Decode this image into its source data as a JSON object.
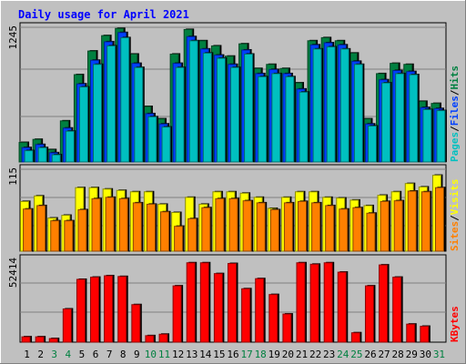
{
  "chart_data": [
    {
      "type": "bar",
      "title": "Daily usage for April 2021",
      "panel": "top",
      "ymax_label": "1245",
      "legend_labels": [
        "Pages",
        "Files",
        "Hits"
      ],
      "legend_colors": [
        "#00c0c0",
        "#0040ff",
        "#008040"
      ],
      "categories": [
        "1",
        "2",
        "3",
        "4",
        "5",
        "6",
        "7",
        "8",
        "9",
        "10",
        "11",
        "12",
        "13",
        "14",
        "15",
        "16",
        "17",
        "18",
        "19",
        "20",
        "21",
        "22",
        "23",
        "24",
        "25",
        "26",
        "27",
        "28",
        "29",
        "30",
        "31"
      ],
      "series": [
        {
          "name": "Hits",
          "color": "#008040",
          "values": [
            190,
            220,
            120,
            400,
            850,
            1080,
            1230,
            1300,
            1050,
            540,
            420,
            1050,
            1290,
            1180,
            1130,
            1030,
            1150,
            910,
            950,
            910,
            770,
            1180,
            1210,
            1180,
            1060,
            420,
            860,
            960,
            950,
            590,
            570
          ]
        },
        {
          "name": "Files",
          "color": "#0040ff",
          "values": [
            140,
            170,
            90,
            330,
            760,
            990,
            1170,
            1260,
            960,
            470,
            370,
            960,
            1220,
            1100,
            1040,
            950,
            1090,
            860,
            900,
            860,
            710,
            1140,
            1160,
            1140,
            980,
            370,
            800,
            890,
            880,
            530,
            520
          ]
        },
        {
          "name": "Pages",
          "color": "#00c0c0",
          "values": [
            110,
            140,
            70,
            300,
            730,
            950,
            1130,
            1210,
            920,
            440,
            340,
            920,
            1180,
            1060,
            1010,
            920,
            1050,
            830,
            860,
            830,
            680,
            1100,
            1120,
            1100,
            950,
            350,
            770,
            860,
            850,
            510,
            500
          ]
        }
      ],
      "ylim": [
        0,
        1320
      ]
    },
    {
      "type": "bar",
      "panel": "middle",
      "ymax_label": "115",
      "legend_labels": [
        "Sites",
        "Visits"
      ],
      "legend_colors": [
        "#ff8000",
        "#ffff00"
      ],
      "categories": [
        "1",
        "2",
        "3",
        "4",
        "5",
        "6",
        "7",
        "8",
        "9",
        "10",
        "11",
        "12",
        "13",
        "14",
        "15",
        "16",
        "17",
        "18",
        "19",
        "20",
        "21",
        "22",
        "23",
        "24",
        "25",
        "26",
        "27",
        "28",
        "29",
        "30",
        "31"
      ],
      "series": [
        {
          "name": "Visits",
          "color": "#ffff00",
          "values": [
            72,
            80,
            48,
            52,
            92,
            92,
            90,
            88,
            86,
            86,
            68,
            56,
            78,
            68,
            86,
            86,
            84,
            78,
            62,
            78,
            86,
            86,
            78,
            77,
            74,
            66,
            81,
            86,
            98,
            93,
            110
          ]
        },
        {
          "name": "Sites",
          "color": "#ff8000",
          "values": [
            61,
            66,
            44,
            44,
            60,
            76,
            78,
            76,
            70,
            68,
            57,
            36,
            47,
            63,
            76,
            76,
            73,
            70,
            60,
            70,
            72,
            70,
            66,
            61,
            63,
            55,
            72,
            73,
            87,
            86,
            92
          ]
        }
      ],
      "ylim": [
        0,
        120
      ]
    },
    {
      "type": "bar",
      "panel": "bottom",
      "ymax_label": "52414",
      "legend_labels": [
        "KBytes"
      ],
      "legend_colors": [
        "#ff0000"
      ],
      "categories": [
        "1",
        "2",
        "3",
        "4",
        "5",
        "6",
        "7",
        "8",
        "9",
        "10",
        "11",
        "12",
        "13",
        "14",
        "15",
        "16",
        "17",
        "18",
        "19",
        "20",
        "21",
        "22",
        "23",
        "24",
        "25",
        "26",
        "27",
        "28",
        "29",
        "30",
        "31"
      ],
      "series": [
        {
          "name": "KBytes",
          "color": "#ff0000",
          "values": [
            3700,
            3700,
            2500,
            23000,
            43500,
            45000,
            46000,
            45500,
            26000,
            4500,
            5500,
            39000,
            55000,
            55000,
            47500,
            54500,
            37000,
            44000,
            33000,
            19500,
            55000,
            54000,
            55000,
            48500,
            6500,
            39000,
            53500,
            45000,
            12500,
            11000,
            0
          ]
        }
      ],
      "ylim": [
        0,
        58000
      ]
    }
  ],
  "xaxis": {
    "labels": [
      "1",
      "2",
      "3",
      "4",
      "5",
      "6",
      "7",
      "8",
      "9",
      "10",
      "11",
      "12",
      "13",
      "14",
      "15",
      "16",
      "17",
      "18",
      "19",
      "20",
      "21",
      "22",
      "23",
      "24",
      "25",
      "26",
      "27",
      "28",
      "29",
      "30",
      "31"
    ],
    "weekend_days": [
      "3",
      "4",
      "10",
      "11",
      "17",
      "18",
      "24",
      "25",
      "31"
    ],
    "weekend_color": "#008040",
    "weekday_color": "#000000"
  },
  "colors": {
    "background": "#c0c0c0",
    "plot_background": "#c0c0c0",
    "title": "#0000ff",
    "grid": "#808080",
    "bar_shadow": "#000000"
  }
}
